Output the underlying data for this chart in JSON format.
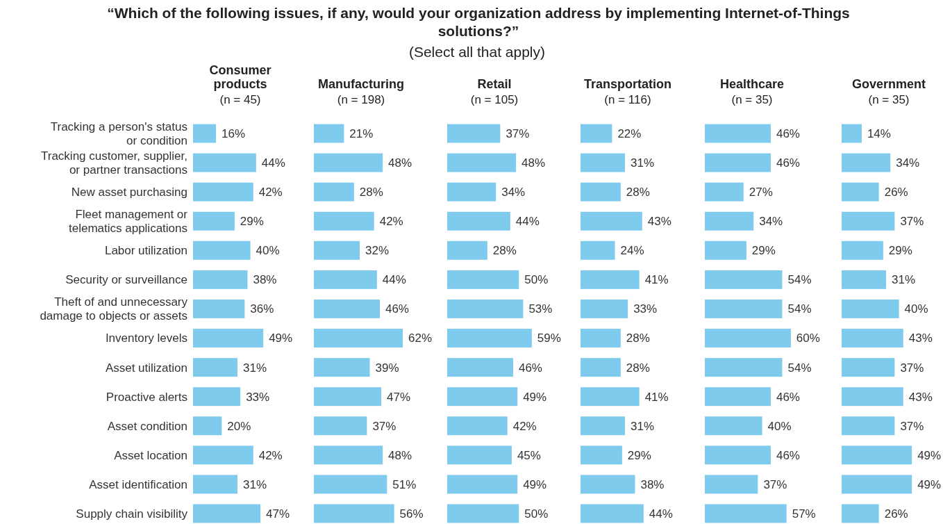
{
  "chart_data": [
    {
      "type": "other",
      "title": "“Which of the following issues, if any, would your organization address by implementing Internet-of-Things solutions?”",
      "subtitle": "(Select all that apply)"
    },
    {
      "type": "bar",
      "orientation": "horizontal",
      "title": "Consumer products",
      "subtitle": "(n = 45)",
      "color": "#7ecbed",
      "tick_labels": "y",
      "categories": [
        "Tracking a person's status or condition",
        "Tracking customer, supplier, or partner transactions",
        "New asset purchasing",
        "Fleet management or telematics applications",
        "Labor utilization",
        "Security or surveillance",
        "Theft of and unnecessary damage to objects or assets",
        "Inventory levels",
        "Asset utilization",
        "Proactive alerts",
        "Asset condition",
        "Asset location",
        "Asset identification",
        "Supply chain visibility"
      ],
      "values": [
        16,
        44,
        42,
        29,
        40,
        38,
        36,
        49,
        31,
        33,
        20,
        42,
        31,
        47
      ],
      "value_labels": [
        "16%",
        "44%",
        "42%",
        "29%",
        "40%",
        "38%",
        "36%",
        "49%",
        "31%",
        "33%",
        "20%",
        "42%",
        "31%",
        "47%"
      ]
    },
    {
      "type": "bar",
      "orientation": "horizontal",
      "title": "Manufacturing",
      "subtitle": "(n = 198)",
      "color": "#7ecbed",
      "tick_labels": false,
      "categories": [
        null,
        null,
        null,
        null,
        null,
        null,
        null,
        null,
        null,
        null,
        null,
        null,
        null,
        null
      ],
      "values": [
        21,
        48,
        28,
        42,
        32,
        44,
        46,
        62,
        39,
        47,
        37,
        48,
        51,
        56
      ],
      "value_labels": [
        "21%",
        "48%",
        "28%",
        "42%",
        "32%",
        "44%",
        "46%",
        "62%",
        "39%",
        "47%",
        "37%",
        "48%",
        "51%",
        "56%"
      ]
    },
    {
      "type": "bar",
      "orientation": "horizontal",
      "title": "Retail",
      "subtitle": "(n = 105)",
      "color": "#7ecbed",
      "tick_labels": false,
      "categories": [
        null,
        null,
        null,
        null,
        null,
        null,
        null,
        null,
        null,
        null,
        null,
        null,
        null,
        null
      ],
      "values": [
        37,
        48,
        34,
        44,
        28,
        50,
        53,
        59,
        46,
        49,
        42,
        45,
        49,
        50
      ],
      "value_labels": [
        "37%",
        "48%",
        "34%",
        "44%",
        "28%",
        "50%",
        "53%",
        "59%",
        "46%",
        "49%",
        "42%",
        "45%",
        "49%",
        "50%"
      ]
    },
    {
      "type": "bar",
      "orientation": "horizontal",
      "title": "Transportation",
      "subtitle": "(n = 116)",
      "color": "#7ecbed",
      "tick_labels": false,
      "categories": [
        null,
        null,
        null,
        null,
        null,
        null,
        null,
        null,
        null,
        null,
        null,
        null,
        null,
        null
      ],
      "values": [
        22,
        31,
        28,
        43,
        24,
        41,
        33,
        28,
        28,
        41,
        31,
        29,
        38,
        44
      ],
      "value_labels": [
        "22%",
        "31%",
        "28%",
        "43%",
        "24%",
        "41%",
        "33%",
        "28%",
        "28%",
        "41%",
        "31%",
        "29%",
        "38%",
        "44%"
      ]
    },
    {
      "type": "bar",
      "orientation": "horizontal",
      "title": "Healthcare",
      "subtitle": "(n = 35)",
      "color": "#7ecbed",
      "tick_labels": false,
      "categories": [
        null,
        null,
        null,
        null,
        null,
        null,
        null,
        null,
        null,
        null,
        null,
        null,
        null,
        null
      ],
      "values": [
        46,
        46,
        27,
        34,
        29,
        54,
        54,
        60,
        54,
        46,
        40,
        46,
        37,
        57
      ],
      "value_labels": [
        "46%",
        "46%",
        "27%",
        "34%",
        "29%",
        "54%",
        "54%",
        "60%",
        "54%",
        "46%",
        "40%",
        "46%",
        "37%",
        "57%"
      ]
    },
    {
      "type": "bar",
      "orientation": "horizontal",
      "title": "Government",
      "subtitle": "(n = 35)",
      "color": "#7ecbed",
      "tick_labels": false,
      "categories": [
        null,
        null,
        null,
        null,
        null,
        null,
        null,
        null,
        null,
        null,
        null,
        null,
        null,
        null
      ],
      "values": [
        14,
        34,
        26,
        37,
        29,
        31,
        40,
        43,
        37,
        43,
        37,
        49,
        49,
        26
      ],
      "value_labels": [
        "14%",
        "34%",
        "26%",
        "37%",
        "29%",
        "31%",
        "40%",
        "43%",
        "37%",
        "43%",
        "37%",
        "49%",
        "49%",
        "26%"
      ]
    }
  ]
}
